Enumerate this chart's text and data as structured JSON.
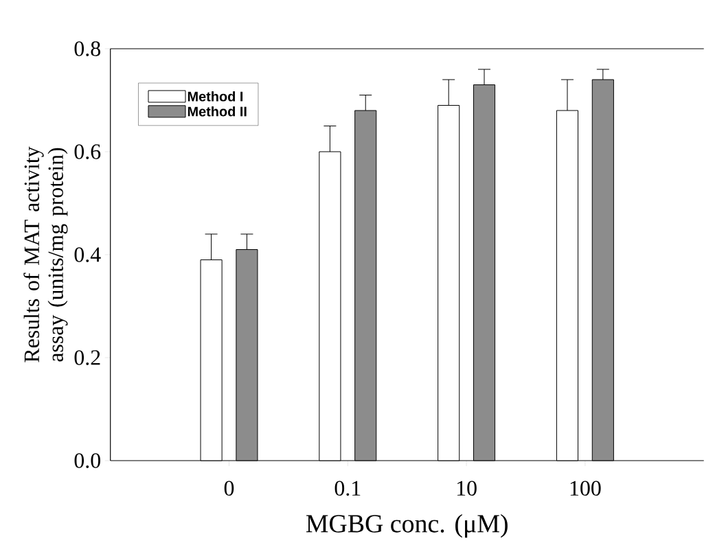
{
  "chart_data": {
    "type": "bar",
    "xlabel": "MGBG conc. (μM)",
    "ylabel": "Results of MAT activity assay (units/mg protein)",
    "categories": [
      "0",
      "0.1",
      "10",
      "100"
    ],
    "series": [
      {
        "name": "Method I",
        "color": "#ffffff",
        "values": [
          0.39,
          0.6,
          0.69,
          0.68
        ],
        "errors": [
          [
            0.39,
            0.44
          ],
          [
            0.6,
            0.65
          ],
          [
            0.69,
            0.74
          ],
          [
            0.68,
            0.74
          ]
        ]
      },
      {
        "name": "Method II",
        "color": "#8c8c8c",
        "values": [
          0.41,
          0.68,
          0.73,
          0.74
        ],
        "errors": [
          [
            0.41,
            0.44
          ],
          [
            0.68,
            0.71
          ],
          [
            0.73,
            0.76
          ],
          [
            0.74,
            0.76
          ]
        ]
      }
    ],
    "ylim": [
      0,
      0.8
    ],
    "yticks": [
      {
        "value": 0,
        "label": "0.0"
      },
      {
        "value": 0.2,
        "label": "0.2"
      },
      {
        "value": 0.4,
        "label": "0.4"
      },
      {
        "value": 0.6,
        "label": "0.6"
      },
      {
        "value": 0.8,
        "label": "0.8"
      }
    ],
    "legend": "top left"
  }
}
